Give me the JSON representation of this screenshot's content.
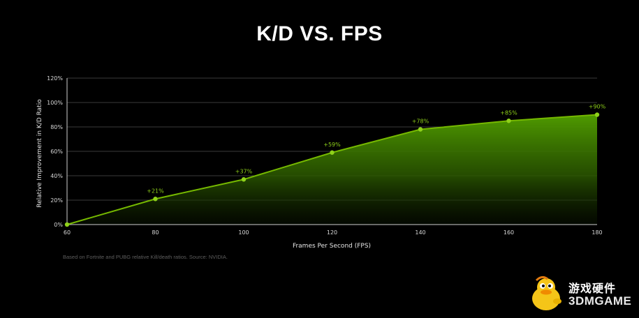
{
  "title": "K/D VS. FPS",
  "source_note": "Based on Fortnite and PUBG relative Kill/death ratios. Source: NVIDIA.",
  "watermark": {
    "chinese": "游戏硬件",
    "english": "3DMGAME",
    "icon": "duck-mascot-icon"
  },
  "colors": {
    "background": "#000000",
    "line": "#76b900",
    "grid": "#3a3a3a",
    "label": "#8fd11a"
  },
  "chart_data": {
    "type": "area",
    "title": "K/D VS. FPS",
    "xlabel": "Frames Per Second (FPS)",
    "ylabel": "Relative Improvement in K/D Ratio",
    "x": [
      60,
      80,
      100,
      120,
      140,
      160,
      180
    ],
    "y": [
      0,
      21,
      37,
      59,
      78,
      85,
      90
    ],
    "data_labels": [
      "",
      "+21%",
      "+37%",
      "+59%",
      "+78%",
      "+85%",
      "+90%"
    ],
    "xlim": [
      60,
      180
    ],
    "ylim": [
      0,
      120
    ],
    "x_ticks": [
      "60",
      "80",
      "100",
      "120",
      "140",
      "160",
      "180"
    ],
    "y_ticks": [
      "0%",
      "20%",
      "40%",
      "60%",
      "80%",
      "100%",
      "120%"
    ],
    "grid": true,
    "legend": "none"
  }
}
